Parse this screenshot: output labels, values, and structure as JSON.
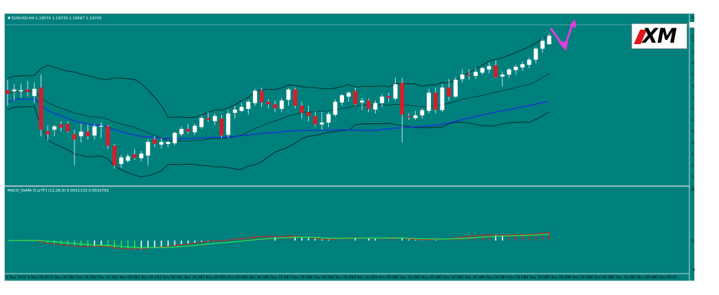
{
  "main_header": "▼ EURUSD,H4  1.19570 1.19733 1.19567 1.19705",
  "indicator_header": "MACD_OsMA [CurTF] (12,26,9) 0.0021133 0.0015782",
  "logo_text": "XM",
  "price_labels": [
    "1.19800",
    "1.19705",
    "1.19630",
    "1.19460",
    "1.19285",
    "1.19115",
    "1.18940",
    "1.18775",
    "1.18600",
    "1.18430",
    "1.18260",
    "1.18090",
    "1.17915",
    "1.17746",
    "1.17575",
    "1.17405"
  ],
  "indicator_labels": [
    "0.005153",
    "0.00",
    "-0.003203"
  ],
  "time_labels": [
    "6 Nov 2020",
    "9 Nov 08:00",
    "10 Nov 00:00",
    "10 Nov 08:00",
    "10 Nov 16:00",
    "11 Nov 08:00",
    "12 Nov 00:00",
    "12 Nov 08:00",
    "12 Nov 16:00",
    "13 Nov 08:00",
    "16 Nov 00:00",
    "16 Nov 08:00",
    "16 Nov 16:00",
    "17 Nov 08:00",
    "18 Nov 00:00",
    "18 Nov 08:00",
    "18 Nov 16:00",
    "19 Nov 08:00",
    "20 Nov 00:00",
    "20 Nov 08:00",
    "20 Nov 16:00",
    "23 Nov 08:00",
    "24 Nov 00:00",
    "24 Nov 08:00",
    "24 Nov 16:00",
    "25 Nov 08:00",
    "26 Nov 00:00",
    "26 Nov 08:00",
    "26 Nov 16:00",
    "27 Nov 08:00",
    "30 Nov 00:00"
  ],
  "colors": {
    "background": "#00807d",
    "bull": "#ffffff",
    "bear": "#d21f2b",
    "bands": "#0a1414",
    "ma": "#1d2fd6",
    "macd_main": "#c8282a",
    "macd_signal": "#27e84a",
    "hist_pos": "#ffffff",
    "hist_pos_down": "#c8282a",
    "hist_neg": "#27e84a",
    "hist_neg_up": "#ffffff",
    "arrow": "#e63cdc"
  },
  "chart_data": {
    "type": "candlestick",
    "symbol": "EURUSD",
    "timeframe": "H4",
    "ylim": [
      1.174,
      1.199
    ],
    "candles": [
      {
        "o": 1.1886,
        "h": 1.1902,
        "l": 1.1862,
        "c": 1.188
      },
      {
        "o": 1.1884,
        "h": 1.1895,
        "l": 1.187,
        "c": 1.1887
      },
      {
        "o": 1.1884,
        "h": 1.1896,
        "l": 1.1874,
        "c": 1.1886
      },
      {
        "o": 1.1887,
        "h": 1.19,
        "l": 1.1876,
        "c": 1.1883
      },
      {
        "o": 1.1877,
        "h": 1.1898,
        "l": 1.1866,
        "c": 1.1888
      },
      {
        "o": 1.189,
        "h": 1.191,
        "l": 1.1815,
        "c": 1.1825
      },
      {
        "o": 1.1823,
        "h": 1.1832,
        "l": 1.1808,
        "c": 1.1818
      },
      {
        "o": 1.1825,
        "h": 1.1832,
        "l": 1.1815,
        "c": 1.183
      },
      {
        "o": 1.1833,
        "h": 1.1838,
        "l": 1.1822,
        "c": 1.1828
      },
      {
        "o": 1.1834,
        "h": 1.1838,
        "l": 1.182,
        "c": 1.1822
      },
      {
        "o": 1.1818,
        "h": 1.1825,
        "l": 1.177,
        "c": 1.181
      },
      {
        "o": 1.1815,
        "h": 1.1834,
        "l": 1.1805,
        "c": 1.1822
      },
      {
        "o": 1.1822,
        "h": 1.1833,
        "l": 1.181,
        "c": 1.1815
      },
      {
        "o": 1.1816,
        "h": 1.1834,
        "l": 1.181,
        "c": 1.183
      },
      {
        "o": 1.183,
        "h": 1.1836,
        "l": 1.1812,
        "c": 1.1831
      },
      {
        "o": 1.183,
        "h": 1.1832,
        "l": 1.1795,
        "c": 1.18
      },
      {
        "o": 1.18,
        "h": 1.1803,
        "l": 1.1765,
        "c": 1.177
      },
      {
        "o": 1.1772,
        "h": 1.1786,
        "l": 1.1766,
        "c": 1.1782
      },
      {
        "o": 1.1777,
        "h": 1.1788,
        "l": 1.1774,
        "c": 1.1784
      },
      {
        "o": 1.1787,
        "h": 1.1795,
        "l": 1.1778,
        "c": 1.1781
      },
      {
        "o": 1.1781,
        "h": 1.1792,
        "l": 1.1776,
        "c": 1.1788
      },
      {
        "o": 1.1785,
        "h": 1.181,
        "l": 1.177,
        "c": 1.1806
      },
      {
        "o": 1.181,
        "h": 1.1815,
        "l": 1.1798,
        "c": 1.1803
      },
      {
        "o": 1.1802,
        "h": 1.1812,
        "l": 1.1796,
        "c": 1.1806
      },
      {
        "o": 1.1803,
        "h": 1.1808,
        "l": 1.1798,
        "c": 1.1806
      },
      {
        "o": 1.1804,
        "h": 1.1822,
        "l": 1.1801,
        "c": 1.182
      },
      {
        "o": 1.1818,
        "h": 1.183,
        "l": 1.1815,
        "c": 1.1826
      },
      {
        "o": 1.1826,
        "h": 1.1834,
        "l": 1.1818,
        "c": 1.1822
      },
      {
        "o": 1.1821,
        "h": 1.1834,
        "l": 1.1817,
        "c": 1.1831
      },
      {
        "o": 1.1829,
        "h": 1.1846,
        "l": 1.1826,
        "c": 1.1843
      },
      {
        "o": 1.1843,
        "h": 1.1852,
        "l": 1.1837,
        "c": 1.184
      },
      {
        "o": 1.1838,
        "h": 1.185,
        "l": 1.1832,
        "c": 1.1846
      },
      {
        "o": 1.1842,
        "h": 1.1848,
        "l": 1.1812,
        "c": 1.1816
      },
      {
        "o": 1.1817,
        "h": 1.1855,
        "l": 1.1812,
        "c": 1.185
      },
      {
        "o": 1.1851,
        "h": 1.1862,
        "l": 1.1842,
        "c": 1.1856
      },
      {
        "o": 1.1854,
        "h": 1.1866,
        "l": 1.1852,
        "c": 1.186
      },
      {
        "o": 1.1857,
        "h": 1.1871,
        "l": 1.1848,
        "c": 1.1868
      },
      {
        "o": 1.1866,
        "h": 1.1888,
        "l": 1.1862,
        "c": 1.1885
      },
      {
        "o": 1.1885,
        "h": 1.189,
        "l": 1.186,
        "c": 1.1867
      },
      {
        "o": 1.1868,
        "h": 1.1872,
        "l": 1.1858,
        "c": 1.1864
      },
      {
        "o": 1.1864,
        "h": 1.187,
        "l": 1.1852,
        "c": 1.1858
      },
      {
        "o": 1.1857,
        "h": 1.1874,
        "l": 1.1852,
        "c": 1.187
      },
      {
        "o": 1.1871,
        "h": 1.1889,
        "l": 1.1862,
        "c": 1.1887
      },
      {
        "o": 1.1887,
        "h": 1.189,
        "l": 1.1858,
        "c": 1.1862
      },
      {
        "o": 1.1862,
        "h": 1.1868,
        "l": 1.1842,
        "c": 1.1851
      },
      {
        "o": 1.1852,
        "h": 1.1862,
        "l": 1.1838,
        "c": 1.1846
      },
      {
        "o": 1.1846,
        "h": 1.1853,
        "l": 1.183,
        "c": 1.1833
      },
      {
        "o": 1.1833,
        "h": 1.1853,
        "l": 1.1825,
        "c": 1.1836
      },
      {
        "o": 1.1836,
        "h": 1.1852,
        "l": 1.1829,
        "c": 1.1849
      },
      {
        "o": 1.1848,
        "h": 1.1872,
        "l": 1.1845,
        "c": 1.1868
      },
      {
        "o": 1.1867,
        "h": 1.188,
        "l": 1.1862,
        "c": 1.1878
      },
      {
        "o": 1.1876,
        "h": 1.1884,
        "l": 1.1868,
        "c": 1.1882
      },
      {
        "o": 1.1885,
        "h": 1.189,
        "l": 1.1862,
        "c": 1.1864
      },
      {
        "o": 1.1867,
        "h": 1.1874,
        "l": 1.1855,
        "c": 1.187
      },
      {
        "o": 1.187,
        "h": 1.1873,
        "l": 1.1852,
        "c": 1.1857
      },
      {
        "o": 1.1856,
        "h": 1.187,
        "l": 1.185,
        "c": 1.1866
      },
      {
        "o": 1.1866,
        "h": 1.188,
        "l": 1.186,
        "c": 1.1876
      },
      {
        "o": 1.1877,
        "h": 1.1882,
        "l": 1.1868,
        "c": 1.1874
      },
      {
        "o": 1.1873,
        "h": 1.1905,
        "l": 1.187,
        "c": 1.1895
      },
      {
        "o": 1.1897,
        "h": 1.1905,
        "l": 1.1805,
        "c": 1.1848
      },
      {
        "o": 1.1846,
        "h": 1.185,
        "l": 1.184,
        "c": 1.1844
      },
      {
        "o": 1.1843,
        "h": 1.1854,
        "l": 1.184,
        "c": 1.1847
      },
      {
        "o": 1.1847,
        "h": 1.1858,
        "l": 1.1842,
        "c": 1.1855
      },
      {
        "o": 1.1854,
        "h": 1.1888,
        "l": 1.185,
        "c": 1.1882
      },
      {
        "o": 1.1882,
        "h": 1.189,
        "l": 1.185,
        "c": 1.1856
      },
      {
        "o": 1.1855,
        "h": 1.1895,
        "l": 1.1852,
        "c": 1.189
      },
      {
        "o": 1.189,
        "h": 1.1903,
        "l": 1.187,
        "c": 1.1876
      },
      {
        "o": 1.1876,
        "h": 1.1906,
        "l": 1.1874,
        "c": 1.1902
      },
      {
        "o": 1.1903,
        "h": 1.1918,
        "l": 1.1898,
        "c": 1.191
      },
      {
        "o": 1.191,
        "h": 1.1918,
        "l": 1.1902,
        "c": 1.1908
      },
      {
        "o": 1.1908,
        "h": 1.192,
        "l": 1.1904,
        "c": 1.1914
      },
      {
        "o": 1.1913,
        "h": 1.1922,
        "l": 1.191,
        "c": 1.192
      },
      {
        "o": 1.1918,
        "h": 1.1928,
        "l": 1.1912,
        "c": 1.1923
      },
      {
        "o": 1.1924,
        "h": 1.1932,
        "l": 1.1905,
        "c": 1.1906
      },
      {
        "o": 1.1907,
        "h": 1.1914,
        "l": 1.1892,
        "c": 1.191
      },
      {
        "o": 1.191,
        "h": 1.192,
        "l": 1.1905,
        "c": 1.1918
      },
      {
        "o": 1.1917,
        "h": 1.1925,
        "l": 1.191,
        "c": 1.1922
      },
      {
        "o": 1.1921,
        "h": 1.193,
        "l": 1.1916,
        "c": 1.1926
      },
      {
        "o": 1.1925,
        "h": 1.1936,
        "l": 1.192,
        "c": 1.1933
      },
      {
        "o": 1.1933,
        "h": 1.1952,
        "l": 1.1928,
        "c": 1.195
      },
      {
        "o": 1.195,
        "h": 1.1966,
        "l": 1.1944,
        "c": 1.1962
      },
      {
        "o": 1.1957,
        "h": 1.1973,
        "l": 1.1956,
        "c": 1.197
      }
    ]
  }
}
